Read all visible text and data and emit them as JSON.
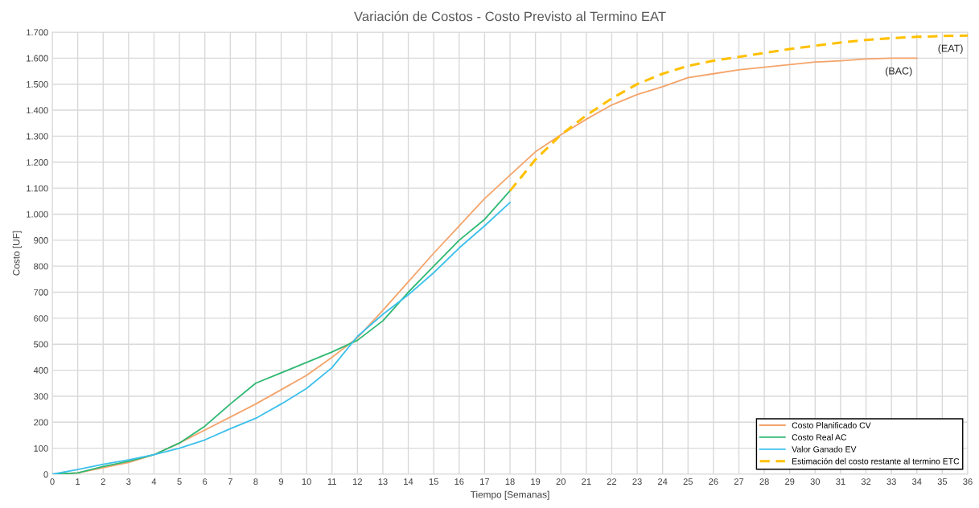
{
  "chart_data": {
    "type": "line",
    "title": "Variación de Costos - Costo Previsto al Termino EAT",
    "xlabel": "Tiempo [Semanas]",
    "ylabel": "Costo [UF]",
    "x": [
      0,
      1,
      2,
      3,
      4,
      5,
      6,
      7,
      8,
      9,
      10,
      11,
      12,
      13,
      14,
      15,
      16,
      17,
      18,
      19,
      20,
      21,
      22,
      23,
      24,
      25,
      26,
      27,
      28,
      29,
      30,
      31,
      32,
      33,
      34
    ],
    "series": [
      {
        "name": "Costo Planificado CV",
        "color": "#f4a46a",
        "values": [
          0,
          5,
          25,
          45,
          75,
          120,
          170,
          220,
          270,
          325,
          380,
          450,
          525,
          630,
          740,
          850,
          955,
          1060,
          1150,
          1240,
          1305,
          1365,
          1420,
          1460,
          1490,
          1525,
          1540,
          1555,
          1565,
          1575,
          1585,
          1590,
          1597,
          1600,
          1600
        ]
      },
      {
        "name": "Costo Real AC",
        "color": "#2eb872",
        "x": [
          0,
          1,
          2,
          3,
          4,
          5,
          6,
          7,
          8,
          9,
          10,
          11,
          12,
          13,
          14,
          15,
          16,
          17,
          18
        ],
        "values": [
          0,
          5,
          30,
          50,
          75,
          120,
          185,
          270,
          350,
          390,
          430,
          470,
          515,
          590,
          700,
          800,
          900,
          980,
          1090
        ]
      },
      {
        "name": "Valor Ganado EV",
        "color": "#3cc0ec",
        "x": [
          0,
          1,
          2,
          3,
          4,
          5,
          6,
          7,
          8,
          9,
          10,
          11,
          12,
          13,
          14,
          15,
          16,
          17,
          18
        ],
        "values": [
          0,
          18,
          38,
          55,
          75,
          100,
          132,
          175,
          215,
          270,
          330,
          410,
          530,
          615,
          690,
          775,
          870,
          955,
          1045
        ]
      },
      {
        "name": "Estimación del costo restante al termino ETC",
        "color": "#ffc000",
        "line_style": "dashed",
        "x": [
          18,
          19,
          20,
          21,
          22,
          23,
          24,
          25,
          26,
          27,
          28,
          29,
          30,
          31,
          32,
          33,
          34,
          35,
          36
        ],
        "values": [
          1090,
          1210,
          1305,
          1380,
          1445,
          1500,
          1540,
          1570,
          1590,
          1605,
          1620,
          1635,
          1648,
          1660,
          1670,
          1677,
          1682,
          1685,
          1687
        ]
      }
    ],
    "annotations": [
      {
        "text": "(BAC)",
        "x": 34,
        "y": 1600
      },
      {
        "text": "(EAT)",
        "x": 36,
        "y": 1687
      }
    ],
    "xlim": [
      0,
      36
    ],
    "xticks": [
      0,
      1,
      2,
      3,
      4,
      5,
      6,
      7,
      8,
      9,
      10,
      11,
      12,
      13,
      14,
      15,
      16,
      17,
      18,
      19,
      20,
      21,
      22,
      23,
      24,
      25,
      26,
      27,
      28,
      29,
      30,
      31,
      32,
      33,
      34,
      35,
      36
    ],
    "ylim": [
      0,
      1700
    ],
    "yticks": [
      0,
      100,
      200,
      300,
      400,
      500,
      600,
      700,
      800,
      900,
      {
        "value": 1000,
        "label": "1.000"
      },
      {
        "value": 1100,
        "label": "1.100"
      },
      {
        "value": 1200,
        "label": "1.200"
      },
      {
        "value": 1300,
        "label": "1.300"
      },
      {
        "value": 1400,
        "label": "1.400"
      },
      {
        "value": 1500,
        "label": "1.500"
      },
      {
        "value": 1600,
        "label": "1.600"
      },
      {
        "value": 1700,
        "label": "1.700"
      }
    ],
    "grid": true,
    "legend": "bottom right",
    "marker": "none"
  }
}
